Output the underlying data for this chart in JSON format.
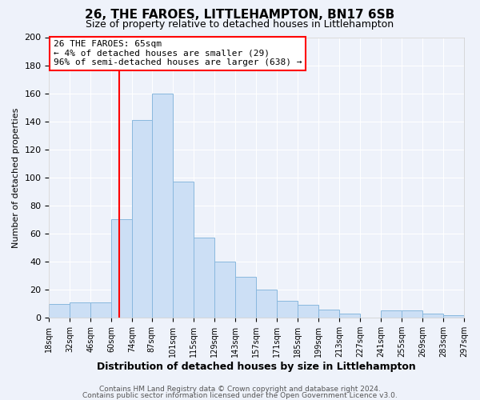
{
  "title": "26, THE FAROES, LITTLEHAMPTON, BN17 6SB",
  "subtitle": "Size of property relative to detached houses in Littlehampton",
  "xlabel": "Distribution of detached houses by size in Littlehampton",
  "ylabel": "Number of detached properties",
  "bar_color": "#ccdff5",
  "bar_edge_color": "#89b8de",
  "background_color": "#eef2fa",
  "grid_color": "#ffffff",
  "redline_x": 65,
  "bin_edges": [
    18,
    32,
    46,
    60,
    74,
    87,
    101,
    115,
    129,
    143,
    157,
    171,
    185,
    199,
    213,
    227,
    241,
    255,
    269,
    283,
    297
  ],
  "bin_heights": [
    10,
    11,
    11,
    70,
    141,
    160,
    97,
    57,
    40,
    29,
    20,
    12,
    9,
    6,
    3,
    0,
    5,
    5,
    3,
    2
  ],
  "annotation_title": "26 THE FAROES: 65sqm",
  "annotation_line1": "← 4% of detached houses are smaller (29)",
  "annotation_line2": "96% of semi-detached houses are larger (638) →",
  "ylim": [
    0,
    200
  ],
  "yticks": [
    0,
    20,
    40,
    60,
    80,
    100,
    120,
    140,
    160,
    180,
    200
  ],
  "tick_labels": [
    "18sqm",
    "32sqm",
    "46sqm",
    "60sqm",
    "74sqm",
    "87sqm",
    "101sqm",
    "115sqm",
    "129sqm",
    "143sqm",
    "157sqm",
    "171sqm",
    "185sqm",
    "199sqm",
    "213sqm",
    "227sqm",
    "241sqm",
    "255sqm",
    "269sqm",
    "283sqm",
    "297sqm"
  ],
  "footer1": "Contains HM Land Registry data © Crown copyright and database right 2024.",
  "footer2": "Contains public sector information licensed under the Open Government Licence v3.0."
}
